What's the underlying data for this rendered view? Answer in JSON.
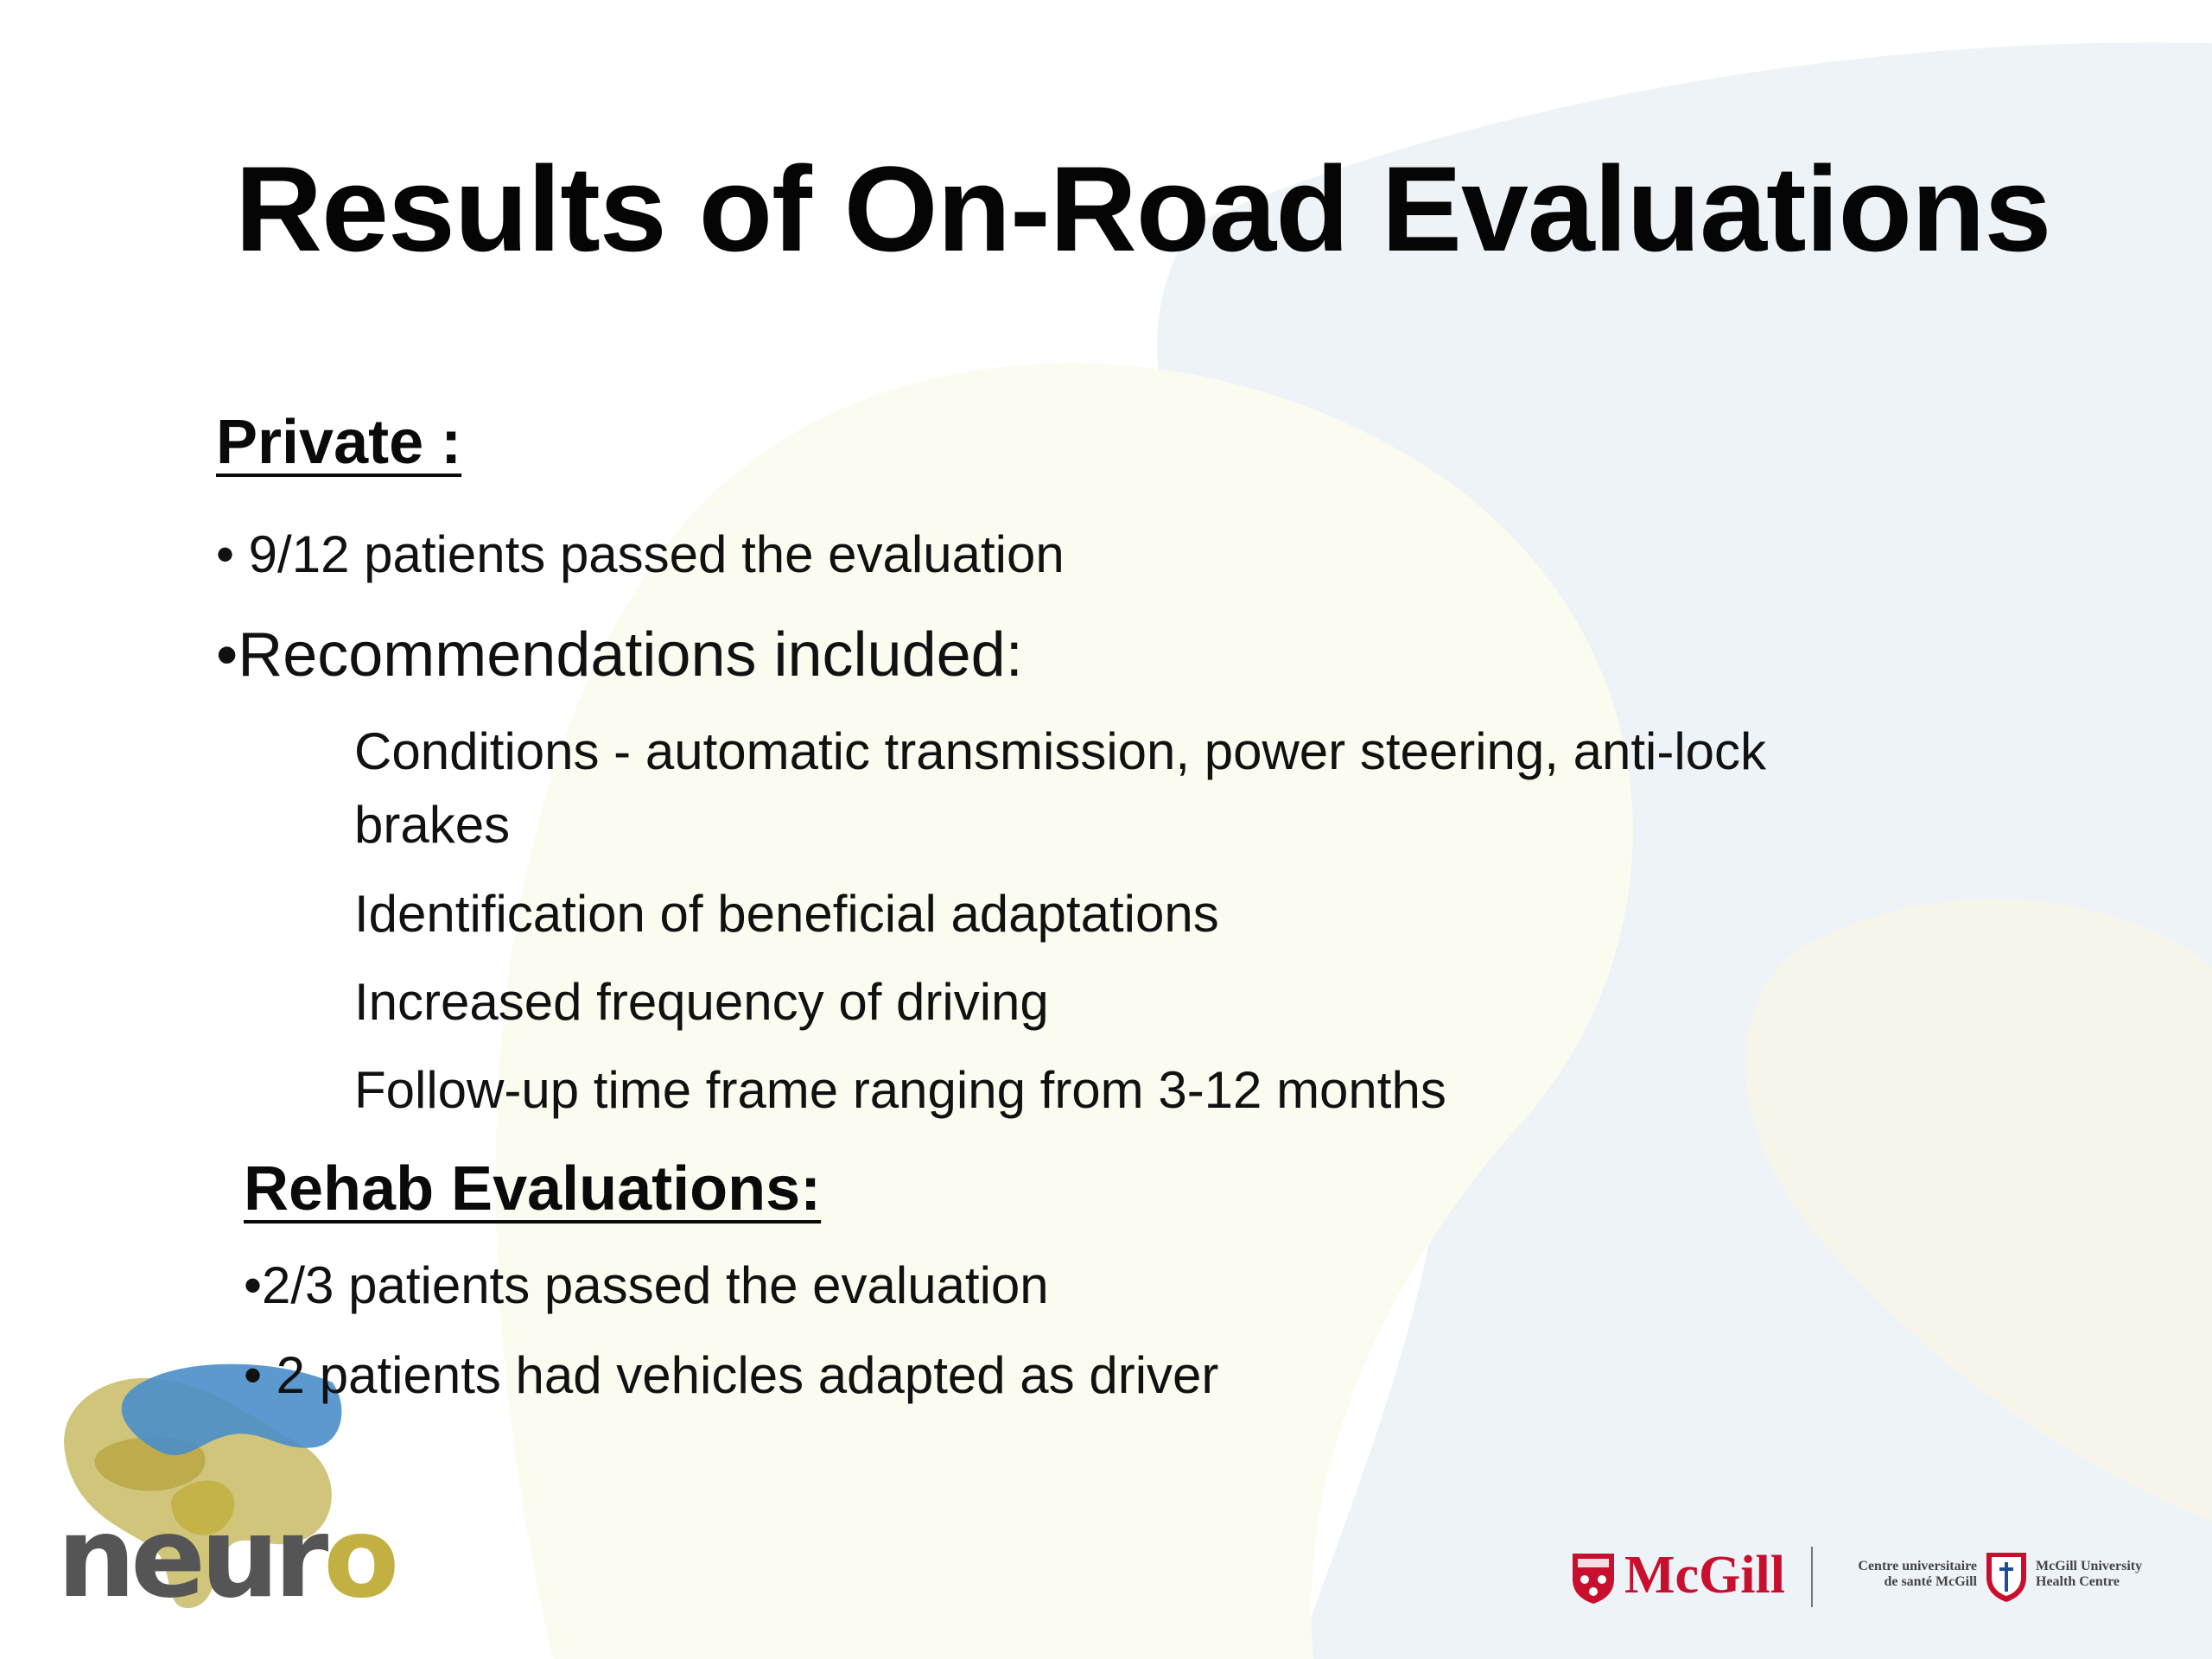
{
  "slide": {
    "title": "Results of On-Road Evaluations",
    "private": {
      "heading": "Private :",
      "bullet_passed": "• 9/12 patients passed the evaluation",
      "bullet_recommendations": "•Recommendations included:",
      "recommendations": [
        "Conditions - automatic transmission, power steering, anti-lock",
        "brakes",
        "Identification of beneficial adaptations",
        "Increased frequency of driving",
        "Follow-up time frame ranging from 3-12 months"
      ]
    },
    "rehab": {
      "heading": "Rehab Evaluations:",
      "bullets": [
        "•2/3 patients passed the evaluation",
        "• 2 patients had vehicles adapted as driver"
      ]
    }
  },
  "logos": {
    "neuro": {
      "prefix": "neur",
      "suffix": "o"
    },
    "mcgill": {
      "name": "McGill"
    },
    "muhc": {
      "fr_line1": "Centre universitaire",
      "fr_line2": "de santé McGill",
      "en_line1": "McGill University",
      "en_line2": "Health Centre"
    }
  },
  "colors": {
    "title": "#050505",
    "text": "#111111",
    "neuro_gray": "#555555",
    "neuro_gold": "#c2b043",
    "neuro_blue": "#4a8ec9",
    "mcgill_red": "#c8102e",
    "bg_blue": "#edf3f8",
    "bg_cream": "#fcfbef"
  },
  "icons": [
    "neuro-brain-icon",
    "mcgill-shield-icon",
    "muhc-shield-icon"
  ]
}
